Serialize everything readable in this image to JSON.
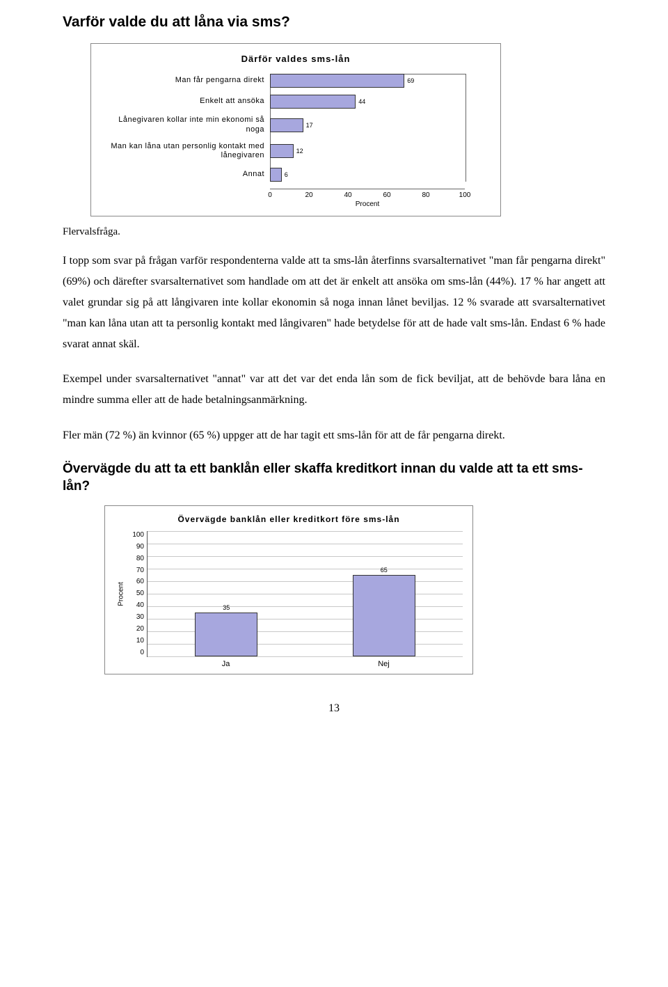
{
  "heading": "Varför valde du att låna via sms?",
  "chart1": {
    "title": "Därför valdes sms-lån",
    "bar_color": "#a7a7de",
    "bar_border": "#333333",
    "xmax": 100,
    "axis_label": "Procent",
    "xticks": [
      0,
      20,
      40,
      60,
      80,
      100
    ],
    "categories": [
      {
        "label": "Man får pengarna direkt",
        "value": 69
      },
      {
        "label": "Enkelt att ansöka",
        "value": 44
      },
      {
        "label": "Lånegivaren kollar inte min ekonomi så noga",
        "value": 17
      },
      {
        "label": "Man kan låna utan personlig kontakt med lånegivaren",
        "value": 12
      },
      {
        "label": "Annat",
        "value": 6
      }
    ]
  },
  "chart1_note": "Flervalsfråga.",
  "para1": "I topp som svar på frågan varför respondenterna valde att ta sms-lån återfinns svarsalternativet \"man får pengarna direkt\" (69%) och därefter svarsalternativet som handlade om att det är enkelt att ansöka om sms-lån (44%). 17 % har angett att valet grundar sig på att långivaren inte kollar ekonomin så noga innan lånet beviljas. 12 % svarade att svarsalternativet \"man kan låna utan att ta personlig kontakt med långivaren\" hade betydelse för att de hade valt sms-lån. Endast 6 % hade svarat annat skäl.",
  "para2": "Exempel under svarsalternativet \"annat\" var att det var det enda lån som de fick beviljat, att de behövde bara låna en mindre summa eller att de hade betalningsanmärkning.",
  "para3": "Fler män (72 %) än kvinnor (65 %) uppger att de har tagit ett sms-lån för att de får pengarna direkt.",
  "heading2": "Övervägde du att ta ett banklån eller skaffa kreditkort innan du valde att ta ett sms-lån?",
  "chart2": {
    "title": "Övervägde banklån eller kreditkort före sms-lån",
    "bar_color": "#a7a7de",
    "grid_color": "#c8c8c8",
    "ymax": 100,
    "ytick_step": 10,
    "ylabel": "Procent",
    "categories": [
      "Ja",
      "Nej"
    ],
    "values": [
      35,
      65
    ]
  },
  "page_number": "13"
}
